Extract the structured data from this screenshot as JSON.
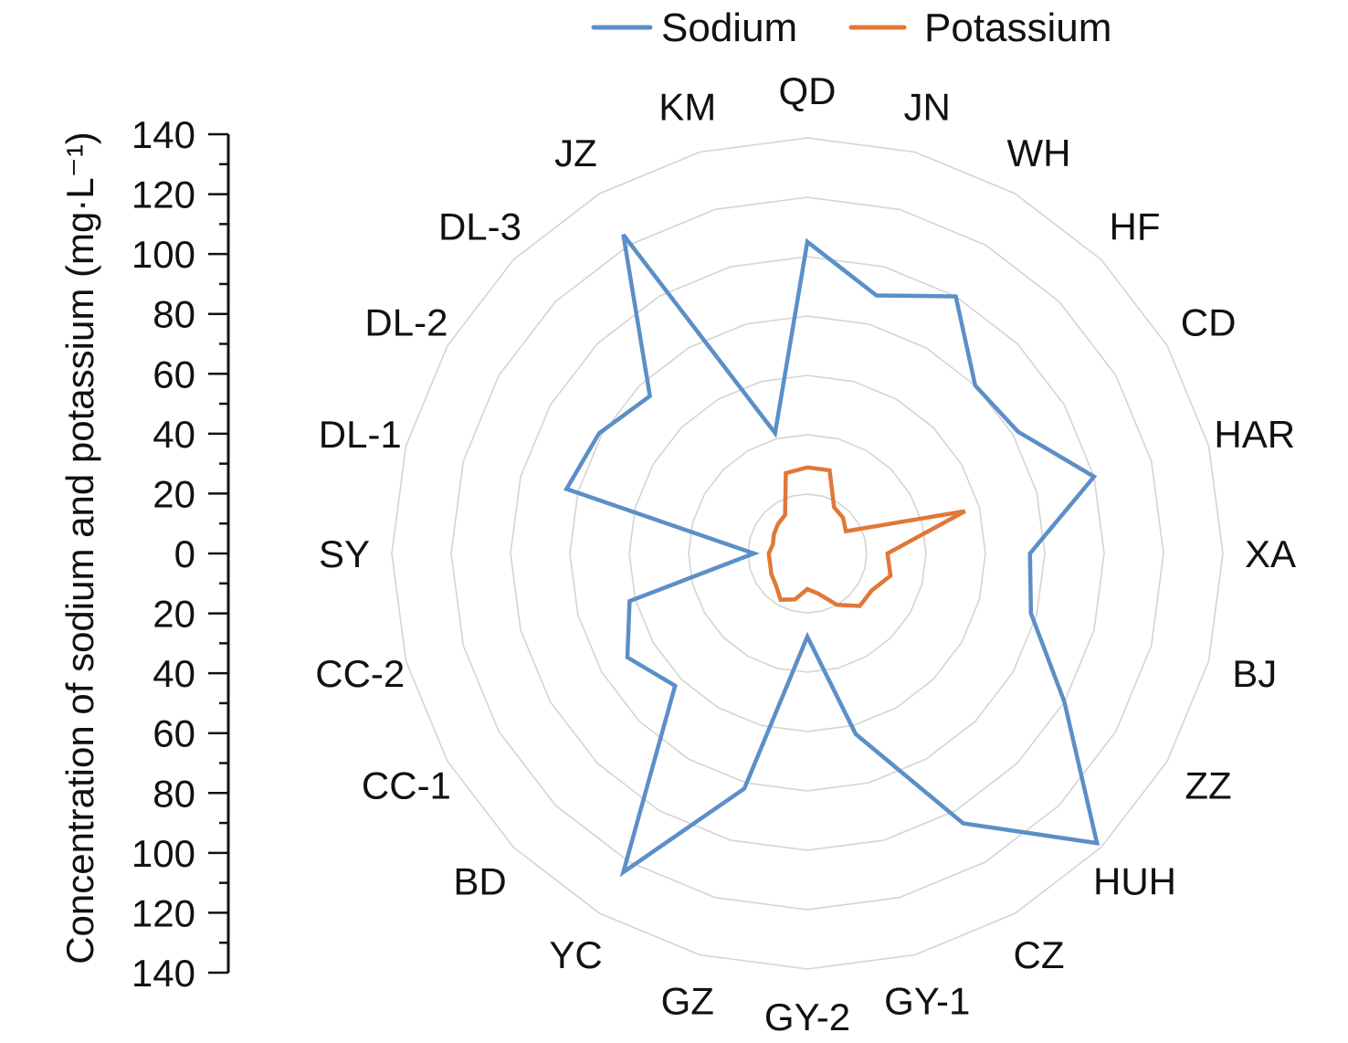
{
  "chart_data": {
    "type": "radar",
    "axis_label": "Concentration of sodium and potassium (mg·L⁻¹)",
    "yticks": [
      "140",
      "120",
      "100",
      "80",
      "60",
      "40",
      "20",
      "0",
      "20",
      "40",
      "60",
      "80",
      "100",
      "120",
      "140"
    ],
    "rlim": [
      0,
      140
    ],
    "ring_step": 20,
    "grid": true,
    "legend_position": "top",
    "categories": [
      "QD",
      "JN",
      "WH",
      "HF",
      "CD",
      "HAR",
      "XA",
      "BJ",
      "ZZ",
      "HUH",
      "CZ",
      "GY-1",
      "GY-2",
      "GZ",
      "YC",
      "BD",
      "CC-1",
      "CC-2",
      "SY",
      "DL-1",
      "DL-2",
      "DL-3",
      "JZ",
      "KM"
    ],
    "series": [
      {
        "name": "Sodium",
        "color": "#5b8fc7",
        "values": [
          105,
          90,
          100,
          80,
          82,
          100,
          75,
          78,
          100,
          138,
          105,
          63,
          28,
          82,
          124,
          63,
          70,
          62,
          18,
          84,
          81,
          75,
          124,
          42
        ]
      },
      {
        "name": "Potassium",
        "color": "#e07838",
        "values": [
          29,
          29,
          18,
          17,
          15,
          55,
          27,
          29,
          25,
          25,
          20,
          14,
          12,
          16,
          18,
          15,
          14,
          13,
          13,
          12,
          13,
          14,
          15,
          28
        ]
      }
    ]
  }
}
